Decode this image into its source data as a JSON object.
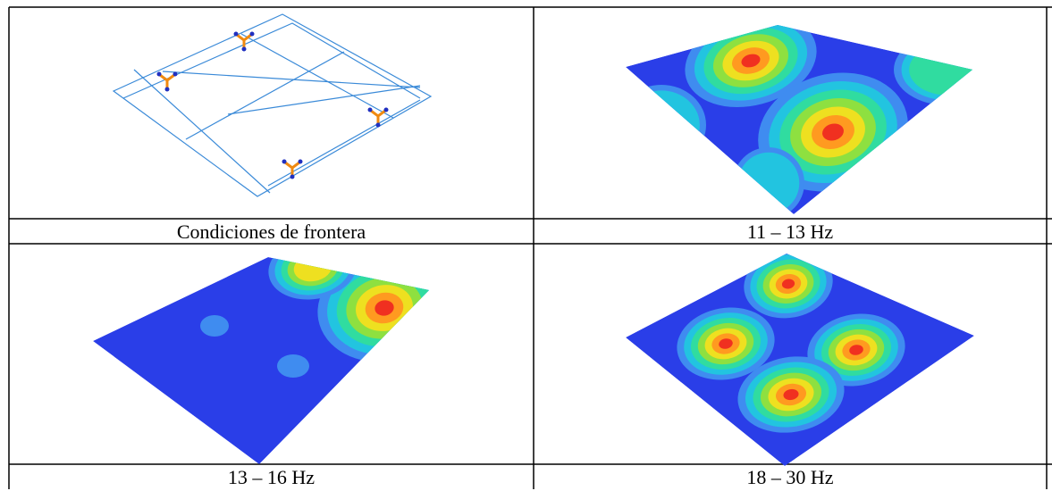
{
  "table": {
    "rows": [
      [
        "Condiciones de frontera",
        "11 – 13 Hz"
      ],
      [
        "13 – 16 Hz",
        "18 – 30 Hz"
      ]
    ]
  }
}
